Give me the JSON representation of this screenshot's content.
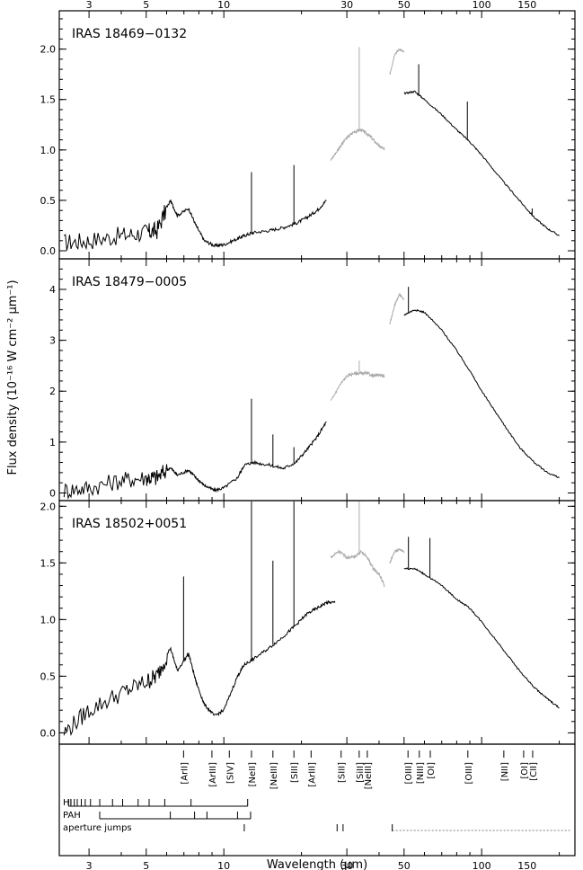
{
  "chart_data": {
    "type": "line",
    "xlabel": "Wavelength (μm)",
    "ylabel": "Flux density (10⁻¹⁶ W cm⁻² μm⁻¹)",
    "xscale": "log",
    "xlim": [
      2.3,
      230
    ],
    "x_ticks": [
      3,
      5,
      10,
      30,
      50,
      100,
      150
    ],
    "x_tick_labels": [
      "3",
      "5",
      "10",
      "30",
      "50",
      "100",
      "150"
    ],
    "panels": [
      {
        "label": "IRAS 18469−0132",
        "ylim": [
          -0.08,
          2.38
        ],
        "y_ticks": [
          0,
          0.5,
          1,
          1.5,
          2
        ],
        "y_tick_labels": [
          "0.0",
          "0.5",
          "1.0",
          "1.5",
          "2.0"
        ],
        "series": [
          {
            "color": "#000000",
            "x": [
              2.4,
              3.0,
              4.0,
              5.0,
              5.5,
              6.2,
              6.6,
              7.3,
              7.8,
              8.4,
              9.2,
              10.0,
              11.3,
              12.0,
              13.0,
              15.0,
              17.0,
              19.0,
              21.0,
              23.0,
              25.0
            ],
            "y": [
              0.08,
              0.1,
              0.15,
              0.18,
              0.2,
              0.5,
              0.35,
              0.42,
              0.25,
              0.1,
              0.05,
              0.06,
              0.12,
              0.15,
              0.18,
              0.2,
              0.23,
              0.27,
              0.33,
              0.4,
              0.5
            ]
          },
          {
            "color": "#aaaaaa",
            "x": [
              26.0,
              28.0,
              30.0,
              32.0,
              34.0,
              36.0,
              38.0,
              40.0,
              42.0
            ],
            "y": [
              0.9,
              1.02,
              1.12,
              1.18,
              1.2,
              1.16,
              1.1,
              1.04,
              1.0
            ]
          },
          {
            "color": "#aaaaaa",
            "x": [
              44.0,
              46.0,
              48.0,
              50.0
            ],
            "y": [
              1.75,
              1.95,
              2.0,
              1.97
            ]
          },
          {
            "color": "#000000",
            "x": [
              50.0,
              55.0,
              60.0,
              70.0,
              80.0,
              90.0,
              100.0,
              120.0,
              140.0,
              160.0,
              180.0,
              200.0
            ],
            "y": [
              1.56,
              1.58,
              1.5,
              1.35,
              1.2,
              1.08,
              0.95,
              0.7,
              0.5,
              0.33,
              0.22,
              0.15
            ]
          }
        ],
        "lines": [
          {
            "x": 12.8,
            "peak": 0.78
          },
          {
            "x": 18.7,
            "peak": 0.85
          },
          {
            "x": 33.5,
            "peak": 2.02
          },
          {
            "x": 57.0,
            "peak": 1.85
          },
          {
            "x": 88.0,
            "peak": 1.48
          },
          {
            "x": 157.0,
            "peak": 0.42
          }
        ]
      },
      {
        "label": "IRAS 18479−0005",
        "ylim": [
          -0.15,
          4.6
        ],
        "y_ticks": [
          0,
          1,
          2,
          3,
          4
        ],
        "y_tick_labels": [
          "0",
          "1",
          "2",
          "3",
          "4"
        ],
        "series": [
          {
            "color": "#000000",
            "x": [
              2.4,
              3.0,
              4.0,
              5.0,
              5.5,
              6.2,
              6.6,
              7.3,
              7.8,
              8.4,
              9.2,
              10.0,
              11.3,
              12.0,
              13.0,
              15.0,
              17.0,
              19.0,
              21.0,
              23.0,
              25.0
            ],
            "y": [
              0.05,
              0.1,
              0.25,
              0.3,
              0.3,
              0.5,
              0.35,
              0.45,
              0.3,
              0.15,
              0.05,
              0.1,
              0.3,
              0.55,
              0.6,
              0.55,
              0.48,
              0.6,
              0.85,
              1.1,
              1.4
            ]
          },
          {
            "color": "#aaaaaa",
            "x": [
              26.0,
              28.0,
              30.0,
              32.0,
              34.0,
              36.0,
              38.0,
              40.0,
              42.0
            ],
            "y": [
              1.8,
              2.1,
              2.3,
              2.35,
              2.35,
              2.35,
              2.3,
              2.32,
              2.3
            ]
          },
          {
            "color": "#aaaaaa",
            "x": [
              44.0,
              46.0,
              48.0,
              50.0
            ],
            "y": [
              3.3,
              3.7,
              3.9,
              3.8
            ]
          },
          {
            "color": "#000000",
            "x": [
              50.0,
              55.0,
              60.0,
              70.0,
              80.0,
              90.0,
              100.0,
              120.0,
              140.0,
              160.0,
              180.0,
              200.0
            ],
            "y": [
              3.5,
              3.6,
              3.55,
              3.2,
              2.8,
              2.4,
              2.0,
              1.4,
              0.9,
              0.6,
              0.4,
              0.3
            ]
          }
        ],
        "lines": [
          {
            "x": 12.8,
            "peak": 1.85
          },
          {
            "x": 15.5,
            "peak": 1.15
          },
          {
            "x": 18.7,
            "peak": 0.9
          },
          {
            "x": 33.5,
            "peak": 2.6
          },
          {
            "x": 52.0,
            "peak": 4.05
          }
        ]
      },
      {
        "label": "IRAS 18502+0051",
        "ylim": [
          -0.1,
          2.05
        ],
        "y_ticks": [
          0,
          0.5,
          1,
          1.5,
          2
        ],
        "y_tick_labels": [
          "0.0",
          "0.5",
          "1.0",
          "1.5",
          "2.0"
        ],
        "series": [
          {
            "color": "#000000",
            "x": [
              2.4,
              3.0,
              4.0,
              5.0,
              5.5,
              6.2,
              6.6,
              7.3,
              7.8,
              8.4,
              9.2,
              10.0,
              11.3,
              12.0,
              13.0,
              15.0,
              17.0,
              19.0,
              21.0,
              23.0,
              25.0,
              27.0
            ],
            "y": [
              0.0,
              0.2,
              0.35,
              0.45,
              0.5,
              0.75,
              0.55,
              0.7,
              0.45,
              0.25,
              0.15,
              0.2,
              0.5,
              0.6,
              0.65,
              0.75,
              0.85,
              0.95,
              1.05,
              1.1,
              1.15,
              1.15
            ]
          },
          {
            "color": "#aaaaaa",
            "x": [
              26.0,
              28.0,
              30.0,
              32.0,
              34.0,
              36.0,
              38.0,
              40.0,
              42.0
            ],
            "y": [
              1.55,
              1.6,
              1.55,
              1.55,
              1.6,
              1.55,
              1.45,
              1.4,
              1.3
            ]
          },
          {
            "color": "#aaaaaa",
            "x": [
              44.0,
              46.0,
              48.0,
              50.0
            ],
            "y": [
              1.5,
              1.6,
              1.62,
              1.6
            ]
          },
          {
            "color": "#000000",
            "x": [
              50.0,
              55.0,
              60.0,
              70.0,
              80.0,
              90.0,
              100.0,
              120.0,
              140.0,
              160.0,
              180.0,
              200.0
            ],
            "y": [
              1.45,
              1.45,
              1.4,
              1.3,
              1.18,
              1.1,
              0.98,
              0.75,
              0.55,
              0.4,
              0.3,
              0.22
            ]
          }
        ],
        "lines": [
          {
            "x": 6.98,
            "peak": 1.38
          },
          {
            "x": 12.8,
            "peak": 2.05
          },
          {
            "x": 15.5,
            "peak": 1.52
          },
          {
            "x": 18.7,
            "peak": 2.05
          },
          {
            "x": 33.5,
            "peak": 2.05
          },
          {
            "x": 52.0,
            "peak": 1.73
          },
          {
            "x": 63.0,
            "peak": 1.72
          }
        ]
      }
    ],
    "line_labels": [
      {
        "text": "[ArII]",
        "x": 6.98
      },
      {
        "text": "[ArIII]",
        "x": 8.99
      },
      {
        "text": "[SIV]",
        "x": 10.5
      },
      {
        "text": "[NeII]",
        "x": 12.8
      },
      {
        "text": "[NeIII]",
        "x": 15.5
      },
      {
        "text": "[SIII]",
        "x": 18.7
      },
      {
        "text": "[ArIII]",
        "x": 21.8
      },
      {
        "text": "[SIII]",
        "x": 28.5
      },
      {
        "text": "[SiII]",
        "x": 33.5
      },
      {
        "text": "[NeIII]",
        "x": 36.0
      },
      {
        "text": "[OIII]",
        "x": 51.8
      },
      {
        "text": "[NIII]",
        "x": 57.3
      },
      {
        "text": "[OI]",
        "x": 63.2
      },
      {
        "text": "[OIII]",
        "x": 88.4
      },
      {
        "text": "[NII]",
        "x": 121.9
      },
      {
        "text": "[OI]",
        "x": 145.5
      },
      {
        "text": "[CII]",
        "x": 157.7
      }
    ],
    "markers": {
      "HI": {
        "label": "HI",
        "x": [
          2.5,
          2.55,
          2.63,
          2.7,
          2.8,
          2.9,
          3.04,
          3.3,
          3.7,
          4.05,
          4.65,
          5.13,
          5.9,
          7.46,
          12.37
        ]
      },
      "PAH": {
        "label": "PAH",
        "x": [
          3.3,
          6.2,
          7.7,
          8.6,
          11.3,
          12.7
        ]
      },
      "aperture_jumps": {
        "label": "aperture jumps",
        "x": [
          12.0,
          27.5,
          29.0,
          45.0
        ],
        "dashed_to": 220
      }
    }
  }
}
